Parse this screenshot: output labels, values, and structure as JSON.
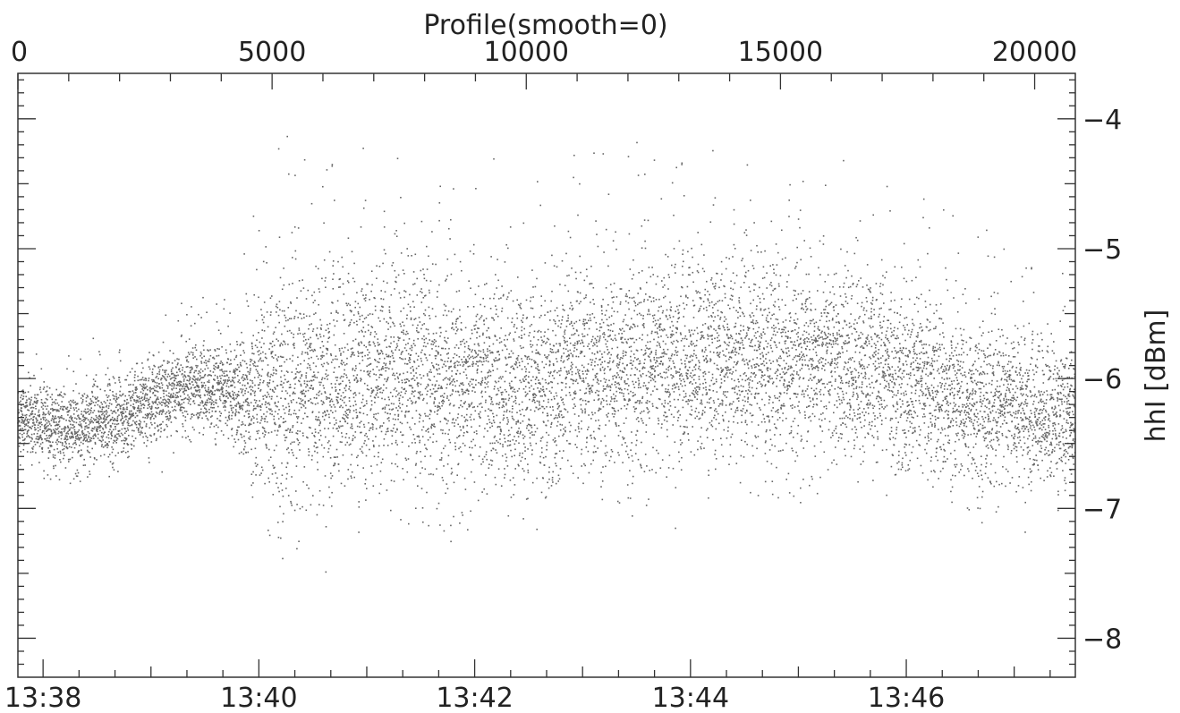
{
  "chart_data": {
    "type": "scatter",
    "title": "Profile(smooth=0)",
    "ylabel": "hhI [dBm]",
    "xlabel": "",
    "y_axis_position": "right",
    "ylim": [
      -8.3,
      -3.65
    ],
    "top_axis": {
      "label": "Profile(smooth=0)",
      "range": [
        0,
        20800
      ],
      "ticks": [
        "0",
        "5000",
        "10000",
        "15000",
        "20000"
      ],
      "tick_values": [
        0,
        5000,
        10000,
        15000,
        20000
      ]
    },
    "bottom_axis": {
      "label": "",
      "range_minutes": [
        "13:37:46",
        "13:47:34"
      ],
      "ticks": [
        "13:38",
        "13:40",
        "13:42",
        "13:44",
        "13:46"
      ]
    },
    "y_ticks": [
      "-4",
      "-5",
      "-6",
      "-7",
      "-8"
    ],
    "y_tick_values": [
      -4,
      -5,
      -6,
      -7,
      -8
    ],
    "grid": false,
    "point_color": "#666666",
    "series": [
      {
        "description_points": [
          [
            0,
            -6.3
          ],
          [
            500,
            -6.35
          ],
          [
            1000,
            -6.4
          ],
          [
            1500,
            -6.35
          ],
          [
            2000,
            -6.3
          ],
          [
            2500,
            -6.2
          ],
          [
            3000,
            -6.1
          ],
          [
            3500,
            -6.05
          ],
          [
            4000,
            -6.1
          ],
          [
            4500,
            -6.15
          ],
          [
            5000,
            -6.05
          ],
          [
            5500,
            -6.1
          ],
          [
            6000,
            -6.05
          ],
          [
            6500,
            -6.0
          ],
          [
            7000,
            -6.0
          ],
          [
            7500,
            -5.95
          ],
          [
            8000,
            -6.0
          ],
          [
            8500,
            -6.05
          ],
          [
            9000,
            -6.05
          ],
          [
            9500,
            -6.05
          ],
          [
            10000,
            -6.1
          ],
          [
            10500,
            -6.0
          ],
          [
            11000,
            -5.95
          ],
          [
            11500,
            -5.95
          ],
          [
            12000,
            -5.9
          ],
          [
            12500,
            -5.9
          ],
          [
            13000,
            -5.85
          ],
          [
            13500,
            -5.85
          ],
          [
            14000,
            -5.85
          ],
          [
            14500,
            -5.85
          ],
          [
            15000,
            -5.9
          ],
          [
            15500,
            -5.85
          ],
          [
            16000,
            -5.9
          ],
          [
            16500,
            -5.9
          ],
          [
            17000,
            -5.9
          ],
          [
            17500,
            -6.0
          ],
          [
            18000,
            -6.1
          ],
          [
            18500,
            -6.15
          ],
          [
            19000,
            -6.2
          ],
          [
            19500,
            -6.2
          ],
          [
            20000,
            -6.25
          ],
          [
            20800,
            -6.3
          ]
        ],
        "spread_points": [
          [
            0,
            0.25
          ],
          [
            4200,
            0.3
          ],
          [
            4600,
            0.55
          ],
          [
            5000,
            0.8
          ],
          [
            7000,
            0.75
          ],
          [
            10000,
            0.7
          ],
          [
            12500,
            0.7
          ],
          [
            16000,
            0.65
          ],
          [
            18000,
            0.6
          ],
          [
            20000,
            0.5
          ],
          [
            20800,
            0.45
          ]
        ],
        "n_points": 20800
      }
    ]
  }
}
